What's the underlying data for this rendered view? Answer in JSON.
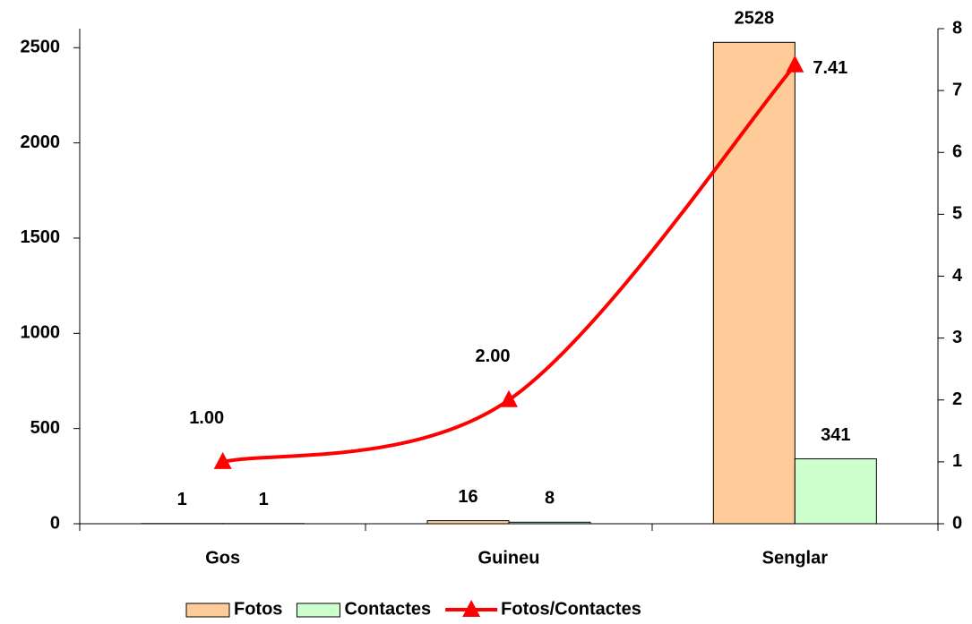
{
  "chart_data": {
    "type": "bar_line",
    "categories": [
      "Gos",
      "Guineu",
      "Senglar"
    ],
    "series": [
      {
        "name": "Fotos",
        "type": "bar",
        "color": "#ffcc99",
        "values": [
          1,
          16,
          2528
        ]
      },
      {
        "name": "Contactes",
        "type": "bar",
        "color": "#ccffcc",
        "values": [
          1,
          8,
          341
        ]
      },
      {
        "name": "Fotos/Contactes",
        "type": "line",
        "axis": "y2",
        "color": "#ff0000",
        "values": [
          1,
          2,
          7.41
        ],
        "value_labels": [
          "1.00",
          "2.00",
          "7.41"
        ]
      }
    ],
    "ylim": [
      0,
      2600
    ],
    "yticks": [
      0,
      500,
      1000,
      1500,
      2000,
      2500
    ],
    "y2lim": [
      0,
      8
    ],
    "y2ticks": [
      0,
      1,
      2,
      3,
      4,
      5,
      6,
      7,
      8
    ],
    "legend": "bottom"
  }
}
